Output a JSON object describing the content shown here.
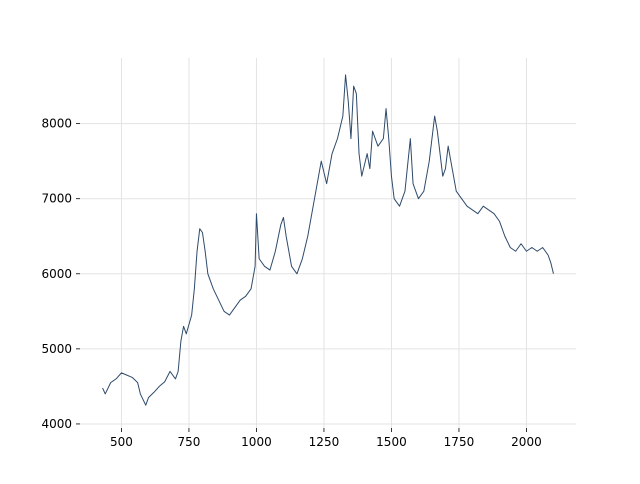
{
  "chart_data": {
    "type": "line",
    "color": "#2e4a6b",
    "grid": true,
    "x": [
      430,
      440,
      460,
      480,
      500,
      520,
      540,
      560,
      570,
      590,
      600,
      620,
      640,
      660,
      680,
      700,
      710,
      720,
      730,
      740,
      760,
      770,
      780,
      790,
      800,
      810,
      820,
      840,
      860,
      880,
      900,
      920,
      940,
      960,
      980,
      995,
      1000,
      1010,
      1030,
      1050,
      1070,
      1090,
      1100,
      1110,
      1130,
      1150,
      1170,
      1190,
      1210,
      1230,
      1240,
      1260,
      1280,
      1300,
      1320,
      1330,
      1340,
      1350,
      1360,
      1370,
      1380,
      1390,
      1410,
      1420,
      1430,
      1450,
      1470,
      1480,
      1490,
      1500,
      1510,
      1530,
      1550,
      1570,
      1580,
      1600,
      1620,
      1640,
      1660,
      1670,
      1690,
      1700,
      1710,
      1720,
      1740,
      1760,
      1780,
      1800,
      1820,
      1840,
      1860,
      1880,
      1900,
      1920,
      1940,
      1960,
      1980,
      2000,
      2020,
      2040,
      2060,
      2080,
      2090,
      2100
    ],
    "values": [
      4480,
      4400,
      4550,
      4600,
      4680,
      4650,
      4620,
      4550,
      4400,
      4250,
      4350,
      4420,
      4500,
      4560,
      4700,
      4600,
      4700,
      5100,
      5300,
      5200,
      5450,
      5800,
      6300,
      6600,
      6550,
      6300,
      6000,
      5800,
      5650,
      5500,
      5450,
      5550,
      5650,
      5700,
      5800,
      6100,
      6800,
      6200,
      6100,
      6050,
      6300,
      6650,
      6750,
      6500,
      6100,
      6000,
      6200,
      6500,
      6900,
      7300,
      7500,
      7200,
      7600,
      7800,
      8100,
      8650,
      8300,
      7800,
      8500,
      8400,
      7600,
      7300,
      7600,
      7400,
      7900,
      7700,
      7800,
      8200,
      7800,
      7300,
      7000,
      6900,
      7100,
      7800,
      7200,
      7000,
      7100,
      7500,
      8100,
      7900,
      7300,
      7400,
      7700,
      7500,
      7100,
      7000,
      6900,
      6850,
      6800,
      6900,
      6850,
      6800,
      6700,
      6500,
      6350,
      6300,
      6400,
      6300,
      6350,
      6300,
      6350,
      6250,
      6150,
      6000
    ],
    "xlim": [
      346.5,
      2183.5
    ],
    "ylim": [
      3946,
      8874
    ],
    "xticks": [
      500,
      750,
      1000,
      1250,
      1500,
      1750,
      2000
    ],
    "yticks": [
      4000,
      5000,
      6000,
      7000,
      8000
    ]
  }
}
